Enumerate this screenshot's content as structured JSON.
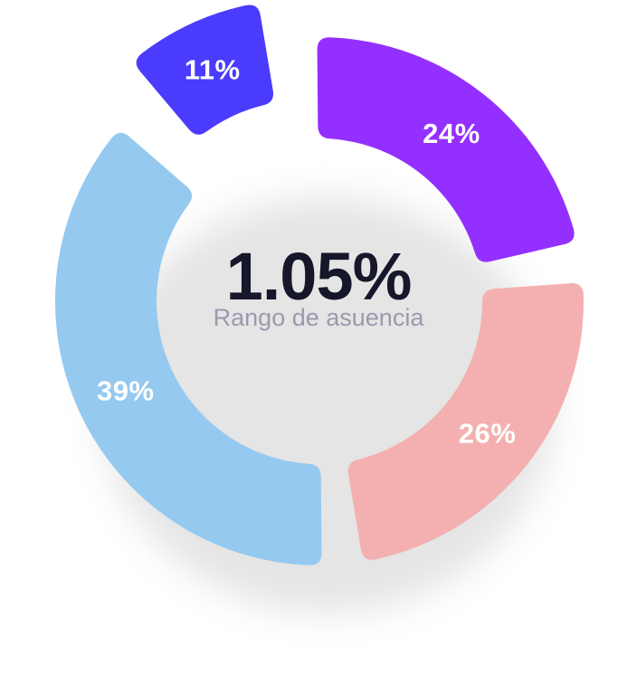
{
  "chart_data": {
    "type": "pie",
    "style": "donut",
    "categories": [
      "",
      "",
      "",
      ""
    ],
    "values": [
      24,
      26,
      39,
      11
    ],
    "labels": [
      "24%",
      "26%",
      "39%",
      "11%"
    ],
    "colors": [
      "#9430ff",
      "#f4b0b0",
      "#95c9f0",
      "#4a3bfd"
    ],
    "exploded_slice_index": 3,
    "center_value": "1.05%",
    "center_label": "Rango de asuencia"
  }
}
